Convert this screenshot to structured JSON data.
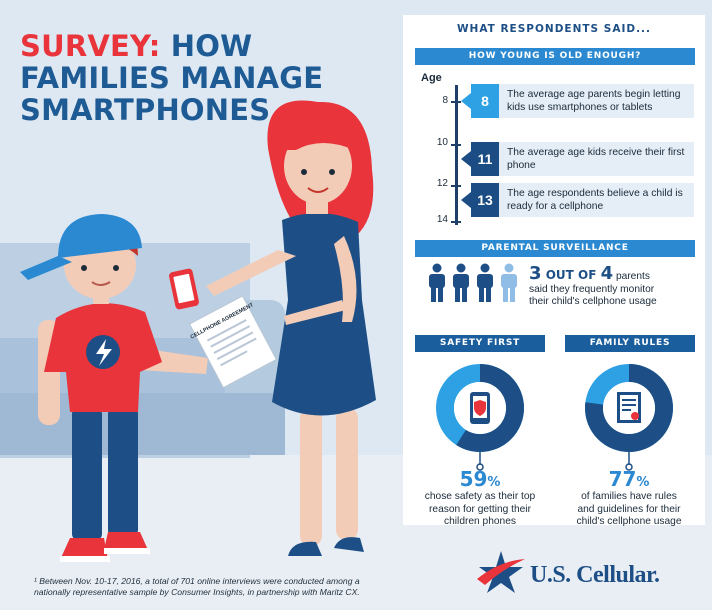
{
  "header": {
    "title_part1": "SURVEY:",
    "title_part2": " HOW",
    "title_line2": "FAMILIES MANAGE",
    "title_line3": "SMARTPHONES"
  },
  "illustration": {
    "agreement_text": "CELLPHONE AGREEMENT"
  },
  "footnote": "¹ Between Nov. 10-17, 2016, a total of 701 online interviews were conducted among a nationally representative sample by Consumer Insights, in partnership with Maritz CX.",
  "panel": {
    "title": "WHAT RESPONDENTS SAID...",
    "age_section": {
      "heading": "HOW YOUNG IS OLD ENOUGH?",
      "axis_label": "Age",
      "ticks": [
        "8",
        "10",
        "12",
        "14"
      ],
      "rows": [
        {
          "number": "8",
          "text": "The average age parents begin letting kids use smartphones or tablets"
        },
        {
          "number": "11",
          "text": "The average age kids receive their first phone"
        },
        {
          "number": "13",
          "text": "The age respondents believe a child is ready for a cellphone"
        }
      ]
    },
    "surveillance": {
      "heading": "PARENTAL SURVEILLANCE",
      "fraction_num": "3",
      "fraction_of": " OUT OF ",
      "fraction_den": "4",
      "line1_rest": " parents",
      "line2": "said they frequently monitor",
      "line3": "their child's cellphone usage",
      "highlighted_count": 3,
      "total_count": 4
    },
    "safety": {
      "heading": "SAFETY FIRST",
      "percent": "59",
      "percent_sign": "%",
      "percent_value": 59,
      "line1": "chose safety as their top",
      "line2": "reason for getting their",
      "line3": "children phones",
      "icon": "shield-phone-icon"
    },
    "rules": {
      "heading": "FAMILY RULES",
      "percent": "77",
      "percent_sign": "%",
      "percent_value": 77,
      "line1": "of families have rules",
      "line2": "and guidelines for their",
      "line3": "child's cellphone usage",
      "icon": "document-icon"
    }
  },
  "brand": {
    "logo_text": "U.S. Cellular."
  },
  "colors": {
    "primary_blue": "#1d4f86",
    "accent_blue": "#2b89d1",
    "light_blue": "#2ea1e4",
    "accent_red": "#e8343a"
  }
}
